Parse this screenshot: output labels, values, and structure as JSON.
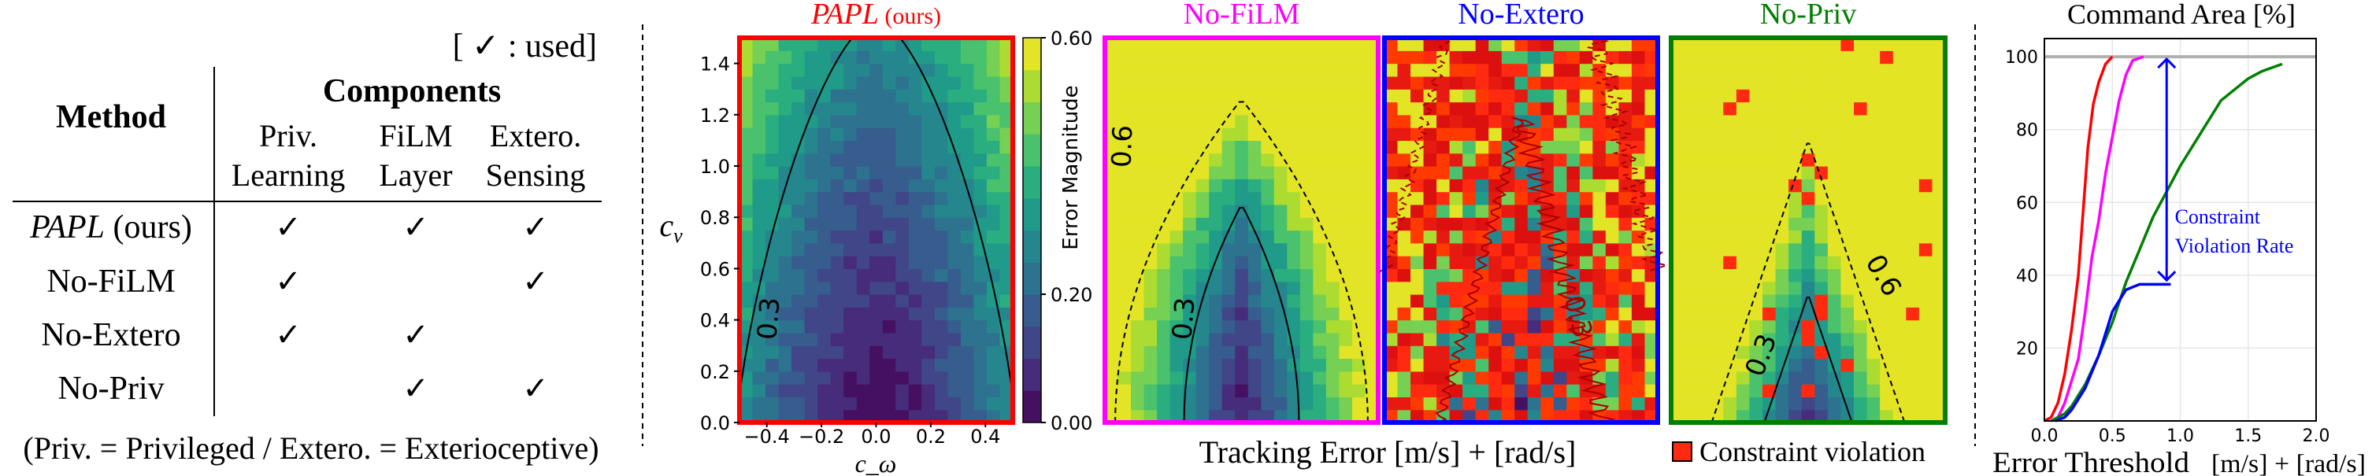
{
  "table": {
    "legend_note": "[ ✓ : used]",
    "method_header": "Method",
    "components_header": "Components",
    "columns": [
      {
        "line1": "Priv.",
        "line2": "Learning"
      },
      {
        "line1": "FiLM",
        "line2": "Layer"
      },
      {
        "line1": "Extero.",
        "line2": "Sensing"
      }
    ],
    "rows": [
      {
        "method_italic": "PAPL",
        "method_rest": " (ours)",
        "checks": [
          "✓",
          "✓",
          "✓"
        ]
      },
      {
        "method_italic": "",
        "method_rest": "No-FiLM",
        "checks": [
          "✓",
          "",
          "✓"
        ]
      },
      {
        "method_italic": "",
        "method_rest": "No-Extero",
        "checks": [
          "✓",
          "✓",
          ""
        ]
      },
      {
        "method_italic": "",
        "method_rest": "No-Priv",
        "checks": [
          "",
          "✓",
          "✓"
        ]
      }
    ],
    "footnote": "(Priv. = Privileged / Extero. = Exterioceptive)"
  },
  "heatmaps": {
    "panels": [
      {
        "title_italic": "PAPL",
        "title_rest": " (ours)",
        "border_color": "#ff0000",
        "contour_labels": [
          "0.3"
        ]
      },
      {
        "title_italic": "",
        "title_rest": "No-FiLM",
        "border_color": "#ff00ff",
        "contour_labels": [
          "0.6",
          "0.3"
        ]
      },
      {
        "title_italic": "",
        "title_rest": "No-Extero",
        "border_color": "#0000ff",
        "contour_labels": [
          "0.3"
        ]
      },
      {
        "title_italic": "",
        "title_rest": "No-Priv",
        "border_color": "#007f00",
        "contour_labels": [
          "0.6",
          "0.3"
        ]
      }
    ],
    "xlabel": "c_ω",
    "xlabel_main": "c",
    "xlabel_sub": "ω",
    "ylabel_main": "c",
    "ylabel_sub": "v",
    "x_ticks": [
      "−0.4",
      "−0.2",
      "0.0",
      "0.2",
      "0.4"
    ],
    "x_tick_values": [
      -0.4,
      -0.2,
      0.0,
      0.2,
      0.4
    ],
    "y_ticks": [
      "0.0",
      "0.2",
      "0.4",
      "0.6",
      "0.8",
      "1.0",
      "1.2",
      "1.4"
    ],
    "y_tick_values": [
      0,
      0.2,
      0.4,
      0.6,
      0.8,
      1.0,
      1.2,
      1.4
    ],
    "xlim": [
      -0.5,
      0.5
    ],
    "ylim": [
      0,
      1.5
    ],
    "colorbar": {
      "label": "Error Magnitude",
      "ticks": [
        "0.00",
        "0.20",
        "0.60"
      ],
      "tick_values": [
        0,
        0.2,
        0.6
      ],
      "range": [
        0,
        0.6
      ],
      "colormap": "viridis",
      "bins": 12
    },
    "shared_xlabel": "Tracking Error [m/s] + [rad/s]",
    "violation_legend": "Constraint violation",
    "violation_color": "#ff2a10",
    "contour_levels": [
      0.3,
      0.6
    ]
  },
  "chart_data": {
    "type": "line",
    "title": "Command Area [%]",
    "xlabel": "Error Threshold",
    "xlabel_units": "[m/s] + [rad/s]",
    "xlim": [
      0,
      2.0
    ],
    "ylim": [
      0,
      105
    ],
    "x_ticks": [
      "0.0",
      "0.5",
      "1.0",
      "1.5",
      "2.0"
    ],
    "x_tick_values": [
      0,
      0.5,
      1.0,
      1.5,
      2.0
    ],
    "y_ticks": [
      "20",
      "40",
      "60",
      "80",
      "100"
    ],
    "y_tick_values": [
      20,
      40,
      60,
      80,
      100
    ],
    "grid": true,
    "reference_line": {
      "y": 100,
      "color": "#b0b0b0"
    },
    "series": [
      {
        "color": "#ff0000",
        "x": [
          0,
          0.05,
          0.1,
          0.15,
          0.2,
          0.25,
          0.28,
          0.32,
          0.36,
          0.4,
          0.45,
          0.5
        ],
        "y": [
          0,
          1,
          5,
          13,
          25,
          40,
          55,
          75,
          87,
          93,
          98,
          100
        ]
      },
      {
        "color": "#ff00ff",
        "x": [
          0.05,
          0.1,
          0.15,
          0.2,
          0.25,
          0.3,
          0.35,
          0.4,
          0.45,
          0.5,
          0.55,
          0.6,
          0.65,
          0.73
        ],
        "y": [
          0,
          1,
          5,
          11,
          17,
          30,
          45,
          55,
          68,
          78,
          88,
          95,
          99,
          100
        ]
      },
      {
        "color": "#007f00",
        "x": [
          0.05,
          0.15,
          0.2,
          0.25,
          0.3,
          0.4,
          0.5,
          0.6,
          0.7,
          0.8,
          0.9,
          1.0,
          1.1,
          1.2,
          1.3,
          1.4,
          1.5,
          1.6,
          1.75
        ],
        "y": [
          0,
          2,
          4,
          7,
          10,
          18,
          27,
          38,
          47,
          56,
          63,
          70,
          76,
          82,
          88,
          91,
          94,
          96,
          98
        ]
      },
      {
        "color": "#0000ff",
        "x": [
          0.08,
          0.15,
          0.2,
          0.3,
          0.4,
          0.5,
          0.6,
          0.7,
          0.93
        ],
        "y": [
          0,
          1,
          3,
          9,
          18,
          30,
          36,
          37.5,
          37.5
        ]
      }
    ],
    "annotation": {
      "line1": "Constraint",
      "line2": "Violation Rate",
      "arrow_x": 0.9,
      "arrow_from": 100,
      "arrow_to": 38,
      "color": "#0000ff"
    }
  }
}
